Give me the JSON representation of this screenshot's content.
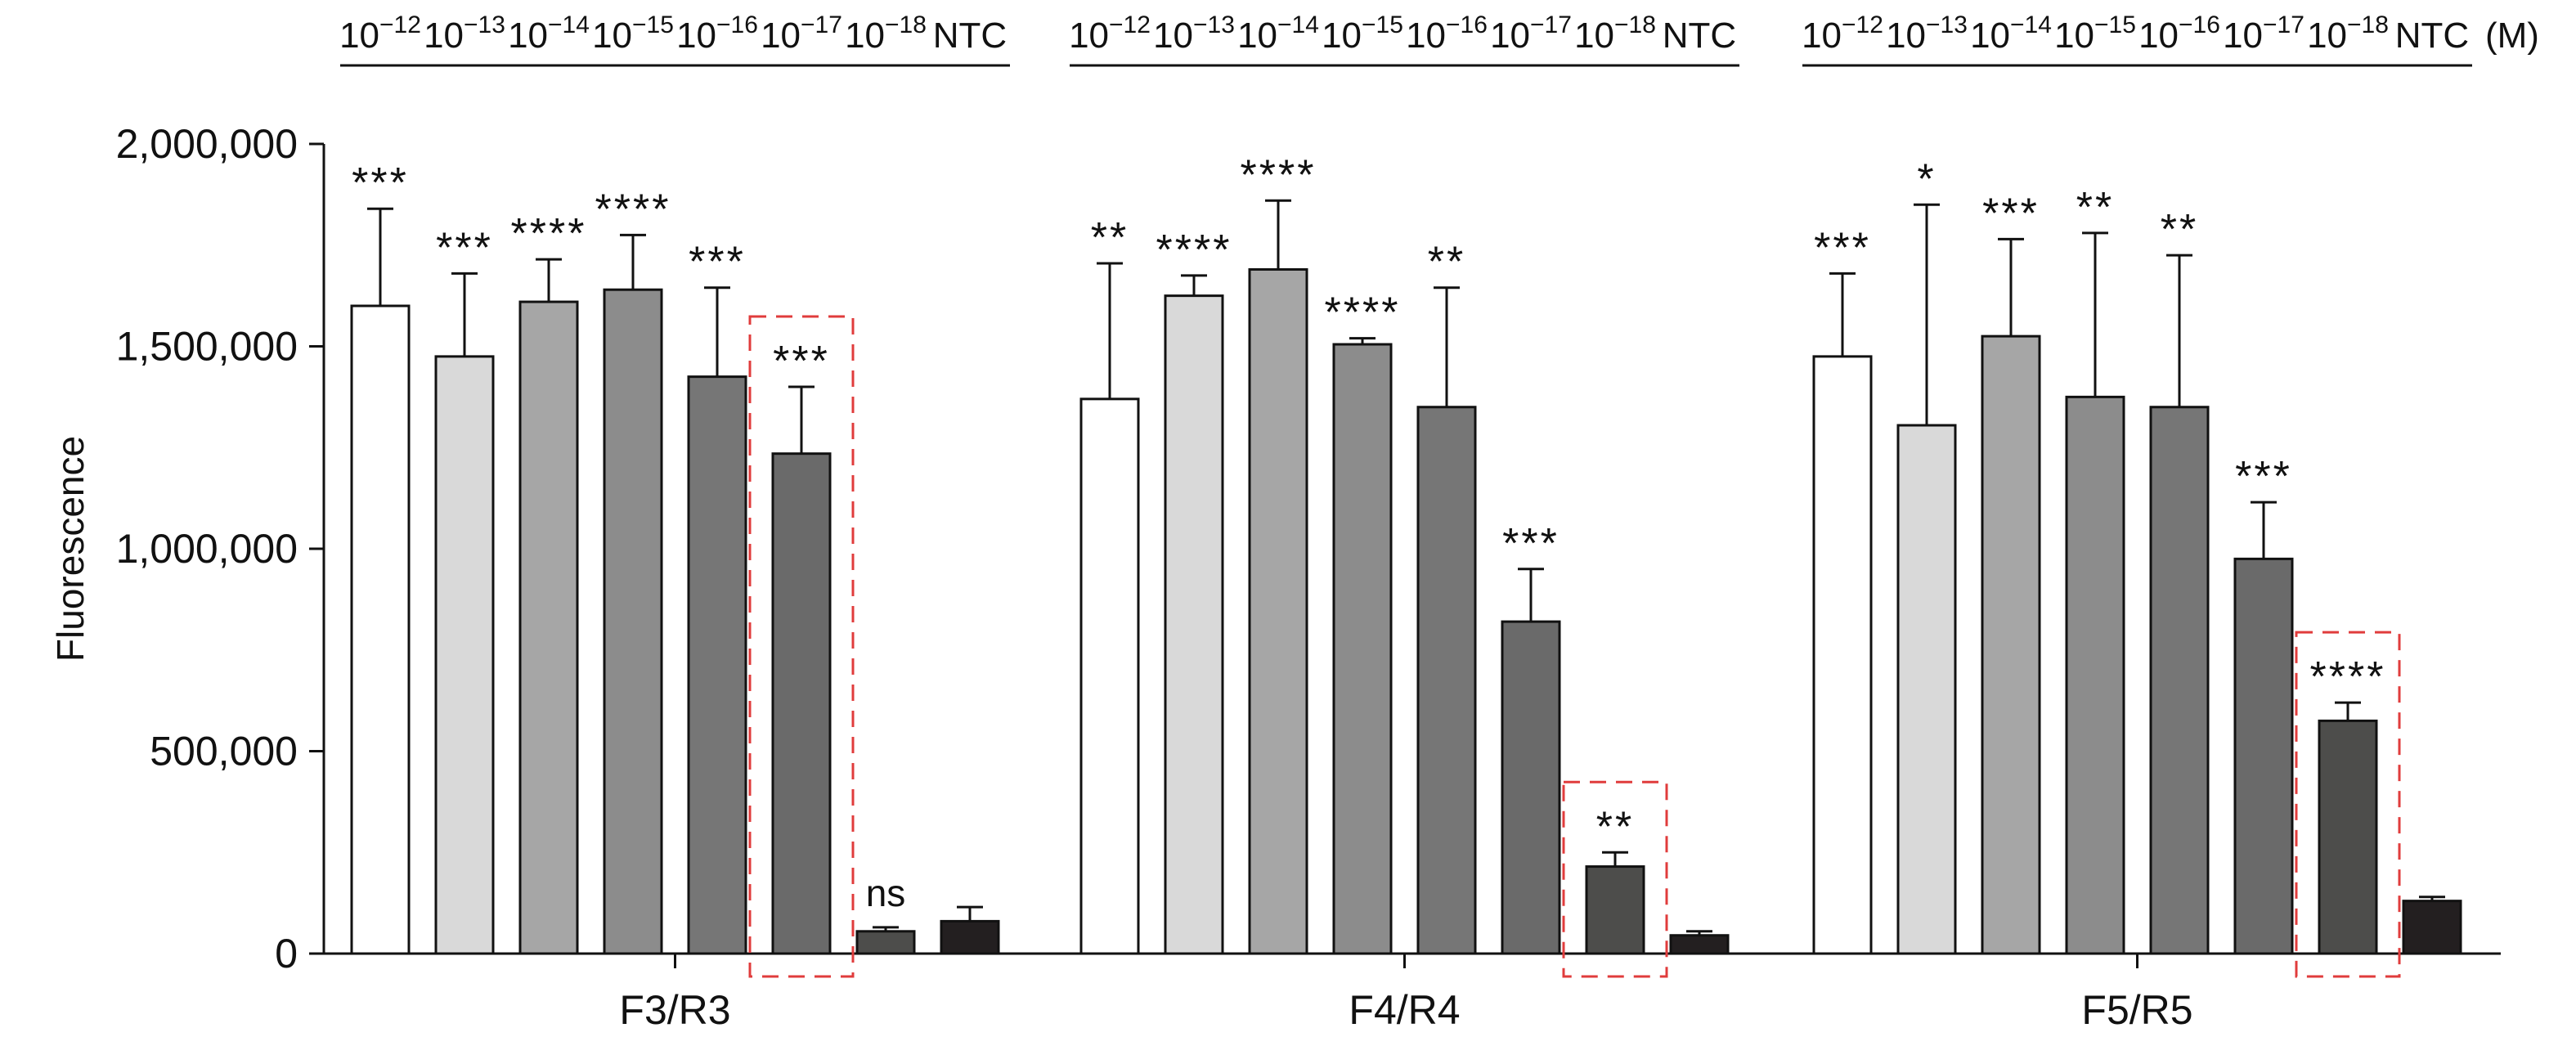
{
  "chart_data": {
    "type": "bar",
    "ylabel": "Fluorescence",
    "ylim": [
      0,
      2000000
    ],
    "yticks": [
      0,
      500000,
      1000000,
      1500000,
      2000000
    ],
    "ytick_labels": [
      "0",
      "500,000",
      "1,000,000",
      "1,500,000",
      "2,000,000"
    ],
    "concentration_labels": [
      {
        "base": "10",
        "exp": "−12"
      },
      {
        "base": "10",
        "exp": "−13"
      },
      {
        "base": "10",
        "exp": "−14"
      },
      {
        "base": "10",
        "exp": "−15"
      },
      {
        "base": "10",
        "exp": "−16"
      },
      {
        "base": "10",
        "exp": "−17"
      },
      {
        "base": "10",
        "exp": "−18"
      },
      {
        "base": "NTC",
        "exp": ""
      }
    ],
    "unit_label": "(M)",
    "bar_colors": [
      "#ffffff",
      "#d9d9d9",
      "#a6a6a6",
      "#8c8c8c",
      "#767676",
      "#6a6a6a",
      "#4d4d4b",
      "#231f20"
    ],
    "highlight_color": "#e03c3c",
    "groups": [
      {
        "name": "F3/R3",
        "values": [
          1600000,
          1475000,
          1610000,
          1640000,
          1425000,
          1235000,
          55000,
          80000
        ],
        "errors": [
          240000,
          205000,
          105000,
          135000,
          220000,
          165000,
          10000,
          35000
        ],
        "significance": [
          "***",
          "***",
          "****",
          "****",
          "***",
          "***",
          "ns",
          ""
        ],
        "highlight_index": 5
      },
      {
        "name": "F4/R4",
        "values": [
          1370000,
          1625000,
          1690000,
          1505000,
          1350000,
          820000,
          215000,
          45000
        ],
        "errors": [
          335000,
          50000,
          170000,
          15000,
          295000,
          130000,
          35000,
          10000
        ],
        "significance": [
          "**",
          "****",
          "****",
          "****",
          "**",
          "***",
          "**",
          ""
        ],
        "highlight_index": 6
      },
      {
        "name": "F5/R5",
        "values": [
          1475000,
          1305000,
          1525000,
          1375000,
          1350000,
          975000,
          575000,
          130000
        ],
        "errors": [
          205000,
          545000,
          240000,
          405000,
          375000,
          140000,
          45000,
          10000
        ],
        "significance": [
          "***",
          "*",
          "***",
          "**",
          "**",
          "***",
          "****",
          ""
        ],
        "highlight_index": 6
      }
    ]
  }
}
